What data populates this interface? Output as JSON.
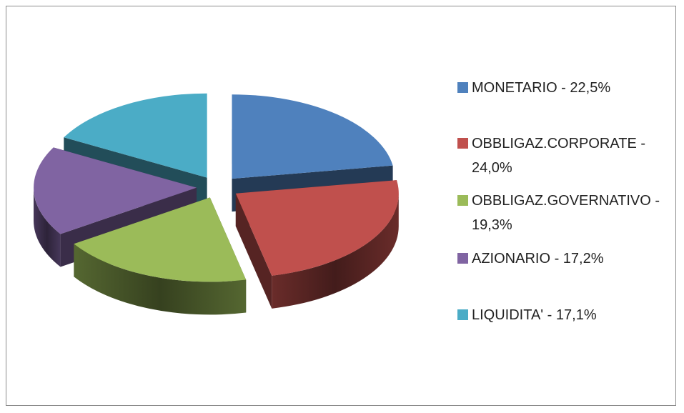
{
  "chart_data": {
    "type": "pie3d",
    "categories": [
      "MONETARIO - 22,5%",
      "OBBLIGAZ.CORPORATE - 24,0%",
      "OBBLIGAZ.GOVERNATIVO - 19,3%",
      "AZIONARIO - 17,2%",
      "LIQUIDITA' - 17,1%"
    ],
    "values": [
      22.5,
      24.0,
      19.3,
      17.2,
      17.1
    ],
    "colors": [
      "#4f81bd",
      "#c0504d",
      "#9bbb59",
      "#8064a2",
      "#4bacc6"
    ],
    "legend": "right"
  }
}
